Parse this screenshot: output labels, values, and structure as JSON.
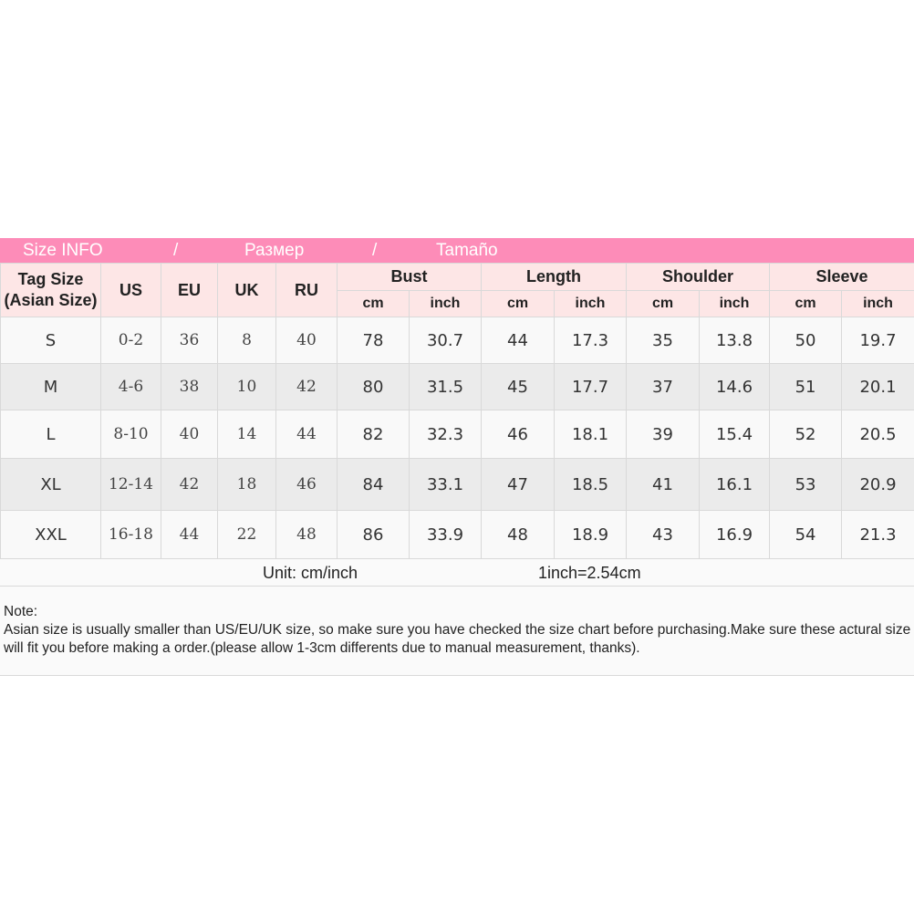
{
  "title_bar": {
    "en": "Size INFO",
    "sep1": "/",
    "ru": "Размер",
    "sep2": "/",
    "es": "Tamaño"
  },
  "colors": {
    "title_bar": "#fd8cb8",
    "header_bg": "#fde6e6",
    "row_alt": "#ebebeb"
  },
  "headers": {
    "tag": "Tag Size (Asian Size)",
    "us": "US",
    "eu": "EU",
    "uk": "UK",
    "ru": "RU",
    "groups": [
      "Bust",
      "Length",
      "Shoulder",
      "Sleeve"
    ],
    "cm": "cm",
    "inch": "inch"
  },
  "rows": [
    [
      "S",
      "0-2",
      "36",
      "8",
      "40",
      "78",
      "30.7",
      "44",
      "17.3",
      "35",
      "13.8",
      "50",
      "19.7"
    ],
    [
      "M",
      "4-6",
      "38",
      "10",
      "42",
      "80",
      "31.5",
      "45",
      "17.7",
      "37",
      "14.6",
      "51",
      "20.1"
    ],
    [
      "L",
      "8-10",
      "40",
      "14",
      "44",
      "82",
      "32.3",
      "46",
      "18.1",
      "39",
      "15.4",
      "52",
      "20.5"
    ],
    [
      "XL",
      "12-14",
      "42",
      "18",
      "46",
      "84",
      "33.1",
      "47",
      "18.5",
      "41",
      "16.1",
      "53",
      "20.9"
    ],
    [
      "XXL",
      "16-18",
      "44",
      "22",
      "48",
      "86",
      "33.9",
      "48",
      "18.9",
      "43",
      "16.9",
      "54",
      "21.3"
    ]
  ],
  "unit": {
    "label": "Unit: cm/inch",
    "conversion": "1inch=2.54cm"
  },
  "note": {
    "heading": "Note:",
    "text": "Asian size is usually smaller than US/EU/UK size, so make sure you have checked the size chart before purchasing.Make sure these actural size will fit you before making a order.(please allow 1-3cm differents due to manual measurement, thanks)."
  }
}
